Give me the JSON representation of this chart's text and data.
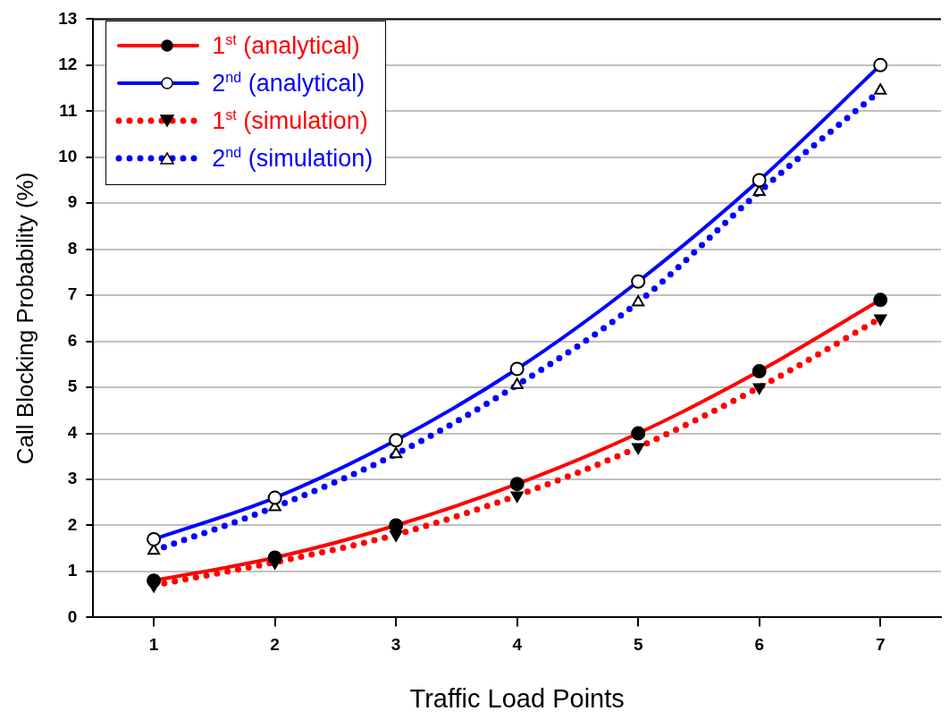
{
  "chart_data": {
    "type": "line",
    "xlabel": "Traffic Load Points",
    "ylabel": "Call Blocking Probability (%)",
    "categories": [
      "1",
      "2",
      "3",
      "4",
      "5",
      "6",
      "7"
    ],
    "ylim": [
      0,
      13
    ],
    "yticks": [
      0,
      1,
      2,
      3,
      4,
      5,
      6,
      7,
      8,
      9,
      10,
      11,
      12,
      13
    ],
    "grid": "y",
    "legend": "top left",
    "series": [
      {
        "name": "1$^{st}$ (analytical)",
        "color": "#ff0000",
        "values": [
          0.8,
          1.3,
          2.0,
          2.9,
          4.0,
          5.35,
          6.9
        ],
        "marker": "circle",
        "line_style": "solid"
      },
      {
        "name": "2$^{nd}$ (analytical)",
        "color": "#0000ff",
        "values": [
          1.7,
          2.6,
          3.85,
          5.4,
          7.3,
          9.5,
          12.0
        ],
        "marker": "circle-open",
        "line_style": "solid"
      },
      {
        "name": "1$^{st}$ (simulation)",
        "color": "#ff0000",
        "values": [
          0.7,
          1.2,
          1.8,
          2.65,
          3.7,
          5.0,
          6.5
        ],
        "marker": "triangle-down",
        "line_style": "dotted"
      },
      {
        "name": "2$^{nd}$ (simulation)",
        "color": "#0000ff",
        "values": [
          1.45,
          2.4,
          3.55,
          5.05,
          6.85,
          9.25,
          11.45
        ],
        "marker": "triangle-open",
        "line_style": "dotted"
      }
    ]
  }
}
